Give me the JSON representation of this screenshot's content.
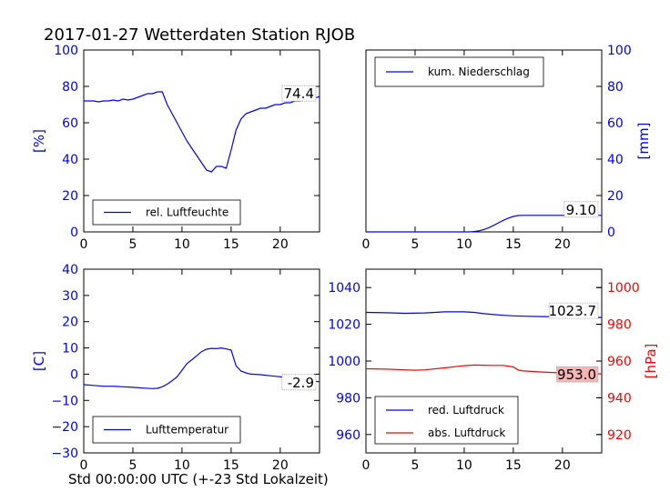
{
  "title": "2017-01-27 Wetterdaten Station RJOB",
  "xlabel": "Std 00:00:00 UTC (+-23 Std Lokalzeit)",
  "colors": {
    "blue": "#0000ff",
    "red": "#ff0000",
    "pink_box": "#f5b5b5"
  },
  "chart_data": [
    {
      "type": "line",
      "id": "humidity",
      "xlim": [
        0,
        24
      ],
      "x_ticks": [
        0,
        5,
        10,
        15,
        20
      ],
      "ylim": [
        0,
        100
      ],
      "y_ticks": [
        0,
        20,
        40,
        60,
        80,
        100
      ],
      "ylabel": "[%]",
      "ylabel_side": "left",
      "grid": false,
      "legend_placement": "lower-left",
      "series": [
        {
          "name": "rel. Luftfeuchte",
          "color": "#0000ff",
          "x": [
            0,
            0.5,
            1,
            1.5,
            2,
            2.5,
            3,
            3.5,
            4,
            4.5,
            5,
            5.5,
            6,
            6.5,
            7,
            7.5,
            8,
            8.5,
            9,
            9.5,
            10,
            10.5,
            11,
            11.5,
            12,
            12.5,
            13,
            13.5,
            14,
            14.5,
            15,
            15.5,
            16,
            16.5,
            17,
            17.5,
            18,
            18.5,
            19,
            19.5,
            20,
            20.5,
            21,
            21.5,
            22,
            22.5,
            23,
            23.5,
            24
          ],
          "y": [
            72,
            72,
            72,
            71.5,
            72,
            72,
            72.5,
            72,
            73,
            72.5,
            73,
            74,
            75,
            76,
            76,
            77,
            77,
            70,
            65,
            60,
            55,
            50,
            46,
            42,
            38,
            34,
            33,
            36,
            36,
            35,
            45,
            56,
            62,
            65,
            66,
            67,
            68,
            68,
            69,
            70,
            70,
            71,
            71,
            72,
            72,
            72.5,
            73,
            73.5,
            74.4
          ],
          "last_label": "74.4"
        }
      ]
    },
    {
      "type": "area",
      "id": "precipitation",
      "xlim": [
        0,
        24
      ],
      "x_ticks": [
        0,
        5,
        10,
        15,
        20
      ],
      "ylim": [
        0,
        100
      ],
      "y_ticks": [
        0,
        20,
        40,
        60,
        80,
        100
      ],
      "ylabel": "[mm]",
      "ylabel_side": "right",
      "grid": false,
      "legend_placement": "top-left",
      "series": [
        {
          "name": "kum. Niederschlag",
          "color": "#0000ff",
          "x": [
            0,
            10.5,
            11,
            11.5,
            12,
            12.5,
            13,
            13.5,
            14,
            14.5,
            15,
            15.5,
            16,
            17,
            18,
            19,
            20,
            24
          ],
          "y": [
            0,
            0,
            0.2,
            0.6,
            1.3,
            2.3,
            3.6,
            5.0,
            6.4,
            7.6,
            8.5,
            9.0,
            9.1,
            9.1,
            9.1,
            9.1,
            9.1,
            9.1
          ],
          "last_label": "9.10"
        }
      ]
    },
    {
      "type": "line",
      "id": "temperature",
      "xlim": [
        0,
        24
      ],
      "x_ticks": [
        0,
        5,
        10,
        15,
        20
      ],
      "ylim": [
        -30,
        40
      ],
      "y_ticks": [
        -30,
        -20,
        -10,
        0,
        10,
        20,
        30,
        40
      ],
      "ylabel": "[C]",
      "ylabel_side": "left",
      "grid": false,
      "legend_placement": "lower-left",
      "series": [
        {
          "name": "Lufttemperatur",
          "color": "#0000ff",
          "x": [
            0,
            1,
            2,
            3,
            4,
            5,
            6,
            7,
            7.5,
            8,
            8.5,
            9,
            9.5,
            10,
            10.5,
            11,
            11.5,
            12,
            12.5,
            13,
            13.5,
            14,
            14.5,
            15,
            15.5,
            16,
            16.5,
            17,
            18,
            19,
            20,
            21,
            22,
            23,
            24
          ],
          "y": [
            -4,
            -4.3,
            -4.6,
            -4.6,
            -4.8,
            -5,
            -5.3,
            -5.5,
            -5.4,
            -4.8,
            -3.8,
            -2.5,
            -1,
            1.5,
            4,
            5.5,
            7,
            8.6,
            9.5,
            9.8,
            9.7,
            10,
            9.6,
            9.2,
            3.2,
            1.2,
            0.5,
            0,
            -0.2,
            -0.6,
            -1,
            -1.5,
            -2,
            -2.5,
            -2.9
          ],
          "last_label": "-2.9"
        }
      ]
    },
    {
      "type": "line",
      "id": "pressure",
      "xlim": [
        0,
        24
      ],
      "x_ticks": [
        0,
        5,
        10,
        15,
        20
      ],
      "ylim_left": [
        950,
        1050
      ],
      "y_ticks_left": [
        960,
        980,
        1000,
        1020,
        1040
      ],
      "ylim_right": [
        910,
        1010
      ],
      "y_ticks_right": [
        920,
        940,
        960,
        980,
        1000
      ],
      "ylabel_right": "[hPa]",
      "grid": false,
      "legend_placement": "lower-left",
      "series": [
        {
          "name": "red. Luftdruck",
          "color": "#0000ff",
          "axis": "left",
          "x": [
            0,
            2,
            4,
            6,
            8,
            10,
            11,
            12,
            13,
            14,
            15,
            16,
            18,
            20,
            22,
            24
          ],
          "y": [
            1026.5,
            1026.3,
            1026.0,
            1026.2,
            1026.8,
            1026.8,
            1026.5,
            1025.8,
            1025.3,
            1024.9,
            1024.6,
            1024.4,
            1024.2,
            1024.1,
            1023.9,
            1023.7
          ],
          "last_label": "1023.7"
        },
        {
          "name": "abs. Luftdruck",
          "color": "#ff0000",
          "axis": "right",
          "x": [
            0,
            2,
            4,
            5,
            6,
            8,
            10,
            11,
            12,
            13,
            14,
            15,
            15.5,
            16,
            18,
            20,
            22,
            24
          ],
          "y": [
            955.8,
            955.6,
            955.2,
            955.0,
            955.2,
            956.3,
            957.5,
            957.8,
            957.7,
            957.6,
            957.6,
            956.8,
            955.1,
            954.6,
            954.0,
            953.5,
            953.2,
            953.0
          ],
          "last_label": "953.0"
        }
      ]
    }
  ]
}
